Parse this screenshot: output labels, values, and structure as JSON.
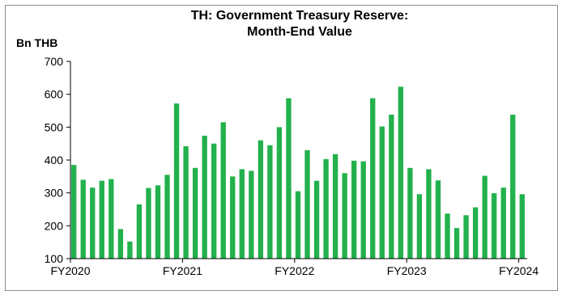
{
  "chart_data": {
    "type": "bar",
    "title_lines": [
      "TH: Government Treasury Reserve:",
      "Month-End Value"
    ],
    "ylabel": "Bn THB",
    "xlabel": "",
    "ylim": [
      100,
      700
    ],
    "yticks": [
      100,
      200,
      300,
      400,
      500,
      600,
      700
    ],
    "xticks": [
      {
        "label": "FY2020",
        "index": 0
      },
      {
        "label": "FY2021",
        "index": 12
      },
      {
        "label": "FY2022",
        "index": 24
      },
      {
        "label": "FY2023",
        "index": 36
      },
      {
        "label": "FY2024",
        "index": 48
      }
    ],
    "grid": false,
    "legend": "none",
    "bar_color": "#22b14c",
    "values": [
      385,
      340,
      316,
      337,
      342,
      190,
      152,
      265,
      315,
      323,
      355,
      572,
      442,
      376,
      474,
      450,
      515,
      350,
      372,
      367,
      460,
      445,
      500,
      588,
      305,
      430,
      337,
      403,
      418,
      360,
      398,
      396,
      588,
      502,
      538,
      623,
      376,
      296,
      372,
      338,
      237,
      193,
      232,
      256,
      352,
      299,
      316,
      538,
      296
    ]
  }
}
